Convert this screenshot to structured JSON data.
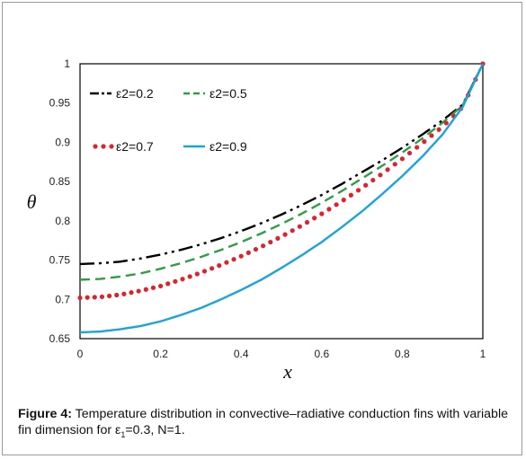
{
  "chart_data": {
    "type": "line",
    "title": "",
    "xlabel": "x",
    "ylabel": "θ",
    "xlim": [
      0,
      1
    ],
    "ylim": [
      0.65,
      1
    ],
    "grid": false,
    "legend_placement": "top-left",
    "xticks": [
      "0",
      "0.2",
      "0.4",
      "0.6",
      "0.8",
      "1"
    ],
    "yticks": [
      "0.65",
      "0.7",
      "0.75",
      "0.8",
      "0.85",
      "0.9",
      "0.95",
      "1"
    ],
    "series": [
      {
        "name": "ε2=0.2",
        "color": "#000000",
        "style": "dash-dot-dot",
        "x": [
          0,
          0.05,
          0.1,
          0.15,
          0.2,
          0.25,
          0.3,
          0.35,
          0.4,
          0.45,
          0.5,
          0.55,
          0.6,
          0.65,
          0.7,
          0.75,
          0.8,
          0.85,
          0.9,
          0.95,
          1
        ],
        "y": [
          0.745,
          0.746,
          0.748,
          0.752,
          0.757,
          0.763,
          0.77,
          0.778,
          0.787,
          0.797,
          0.808,
          0.82,
          0.833,
          0.847,
          0.862,
          0.877,
          0.893,
          0.91,
          0.928,
          0.948,
          1.0
        ]
      },
      {
        "name": "ε2=0.5",
        "color": "#2e9e45",
        "style": "dashed",
        "x": [
          0,
          0.05,
          0.1,
          0.15,
          0.2,
          0.25,
          0.3,
          0.35,
          0.4,
          0.45,
          0.5,
          0.55,
          0.6,
          0.65,
          0.7,
          0.75,
          0.8,
          0.85,
          0.9,
          0.95,
          1
        ],
        "y": [
          0.725,
          0.726,
          0.729,
          0.733,
          0.739,
          0.746,
          0.754,
          0.763,
          0.773,
          0.784,
          0.796,
          0.809,
          0.823,
          0.838,
          0.854,
          0.87,
          0.887,
          0.905,
          0.925,
          0.947,
          1.0
        ]
      },
      {
        "name": "ε2=0.7",
        "color": "#e0202a",
        "style": "dots",
        "x": [
          0,
          0.05,
          0.1,
          0.15,
          0.2,
          0.25,
          0.3,
          0.35,
          0.4,
          0.45,
          0.5,
          0.55,
          0.6,
          0.65,
          0.7,
          0.75,
          0.8,
          0.85,
          0.9,
          0.95,
          1
        ],
        "y": [
          0.702,
          0.703,
          0.706,
          0.711,
          0.717,
          0.725,
          0.734,
          0.744,
          0.755,
          0.767,
          0.78,
          0.794,
          0.809,
          0.825,
          0.842,
          0.86,
          0.879,
          0.899,
          0.92,
          0.945,
          1.0
        ]
      },
      {
        "name": "ε2=0.9",
        "color": "#1aa3dc",
        "style": "solid",
        "x": [
          0,
          0.05,
          0.1,
          0.15,
          0.2,
          0.25,
          0.3,
          0.35,
          0.4,
          0.45,
          0.5,
          0.55,
          0.6,
          0.65,
          0.7,
          0.75,
          0.8,
          0.85,
          0.9,
          0.95,
          1
        ],
        "y": [
          0.658,
          0.659,
          0.662,
          0.666,
          0.672,
          0.68,
          0.689,
          0.7,
          0.712,
          0.725,
          0.74,
          0.756,
          0.773,
          0.792,
          0.812,
          0.834,
          0.857,
          0.882,
          0.91,
          0.945,
          1.0
        ]
      }
    ]
  },
  "caption": {
    "label": "Figure 4:",
    "text_line1": " Temperature distribution in convective–radiative conduction fins with variable fin dimension for ε",
    "subscript": "1",
    "text_line2": "=0.3, N=1."
  }
}
